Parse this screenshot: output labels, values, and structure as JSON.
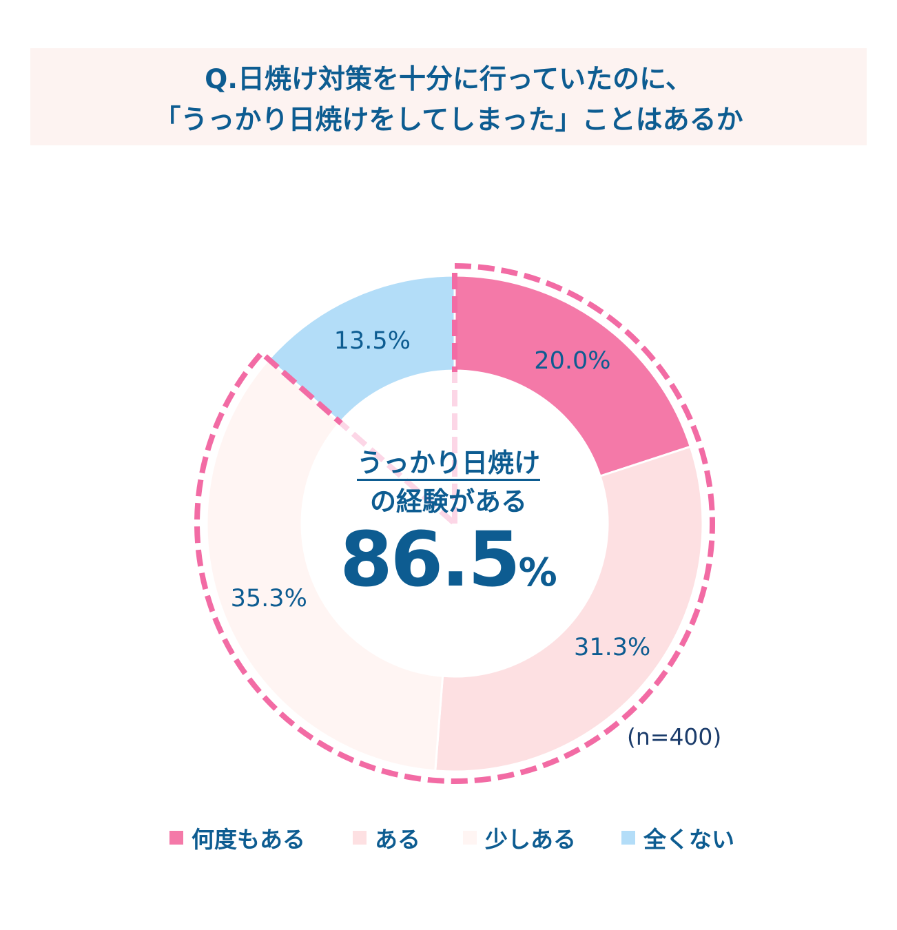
{
  "title": {
    "line1": "Q.日焼け対策を十分に行っていたのに、",
    "line2": "「うっかり日焼けをしてしまった」ことはあるか"
  },
  "chart_data": {
    "type": "pie",
    "categories": [
      "何度もある",
      "ある",
      "少しある",
      "全くない"
    ],
    "values": [
      20.0,
      31.3,
      35.3,
      13.5
    ],
    "value_labels": [
      "20.0%",
      "31.3%",
      "35.3%",
      "13.5%"
    ],
    "colors": [
      "#f479a8",
      "#fde0e2",
      "#fff5f3",
      "#b3ddf8"
    ],
    "donut": true,
    "highlight": {
      "line1": "うっかり日焼け",
      "line2": "の経験がある",
      "value": "86.5",
      "unit": "%",
      "includes": [
        "何度もある",
        "ある",
        "少しある"
      ],
      "outline_color": "#f26ba4"
    },
    "sample_note": "(n=400)",
    "legend": {
      "position": "bottom",
      "items": [
        {
          "label": "何度もある",
          "color": "#f479a8"
        },
        {
          "label": "ある",
          "color": "#fde0e2"
        },
        {
          "label": "少しある",
          "color": "#fff5f3"
        },
        {
          "label": "全くない",
          "color": "#b3ddf8"
        }
      ]
    }
  }
}
